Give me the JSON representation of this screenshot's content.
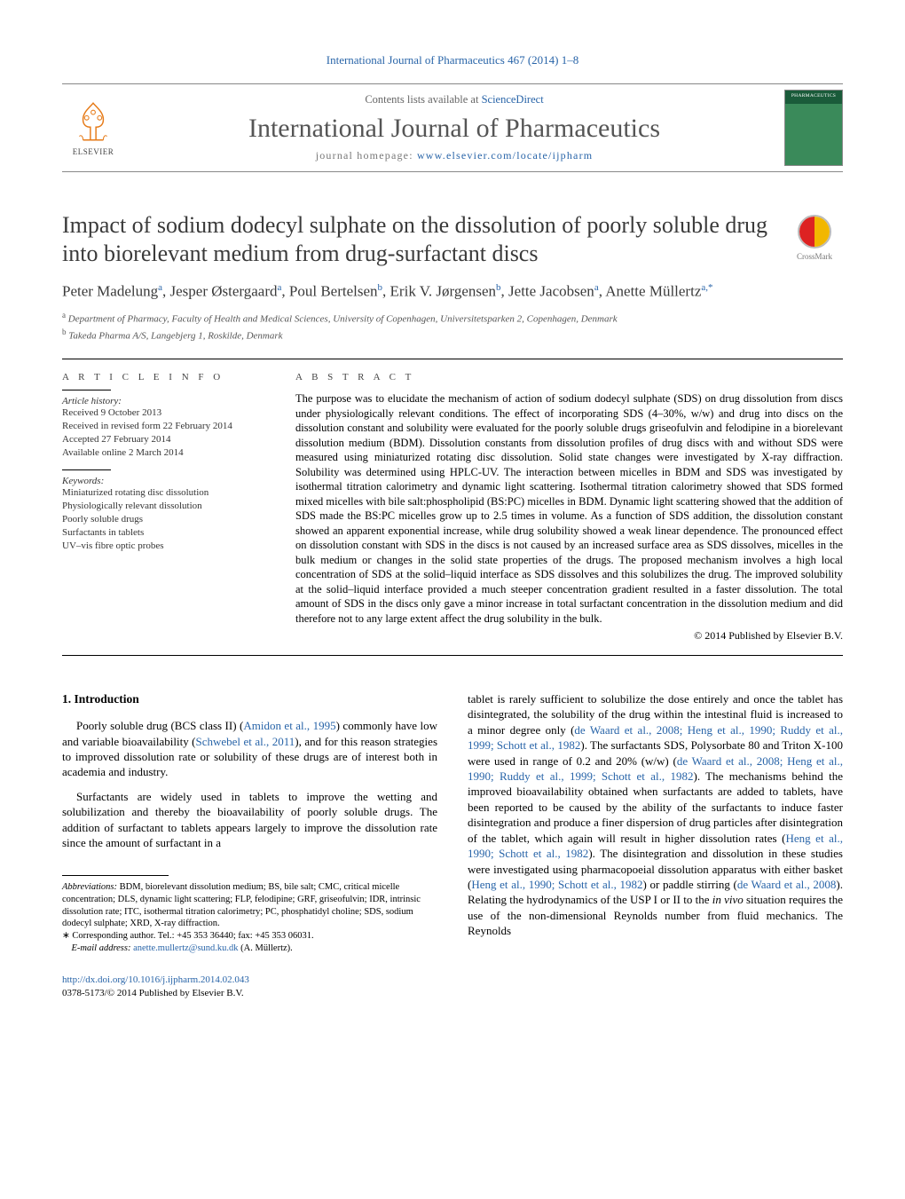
{
  "top_citation": "International Journal of Pharmaceutics 467 (2014) 1–8",
  "header": {
    "contents_prefix": "Contents lists available at ",
    "contents_link": "ScienceDirect",
    "journal_title": "International Journal of Pharmaceutics",
    "homepage_prefix": "journal homepage: ",
    "homepage_url": "www.elsevier.com/locate/ijpharm",
    "publisher_logo_text": "ELSEVIER",
    "cover_label_line1": "PHARMACEUTICS"
  },
  "article": {
    "title": "Impact of sodium dodecyl sulphate on the dissolution of poorly soluble drug into biorelevant medium from drug-surfactant discs",
    "crossmark_label": "CrossMark",
    "authors_html": "Peter Madelung<sup>a</sup>, Jesper Østergaard<sup>a</sup>, Poul Bertelsen<sup>b</sup>, Erik V. Jørgensen<sup>b</sup>, Jette Jacobsen<sup>a</sup>, Anette Müllertz<sup>a,</sup><sup class='sup-star'>*</sup>",
    "affiliations": [
      {
        "marker": "a",
        "text": "Department of Pharmacy, Faculty of Health and Medical Sciences, University of Copenhagen, Universitetsparken 2, Copenhagen, Denmark"
      },
      {
        "marker": "b",
        "text": "Takeda Pharma A/S, Langebjerg 1, Roskilde, Denmark"
      }
    ]
  },
  "article_info": {
    "heading": "a r t i c l e   i n f o",
    "history_label": "Article history:",
    "history": [
      "Received 9 October 2013",
      "Received in revised form 22 February 2014",
      "Accepted 27 February 2014",
      "Available online 2 March 2014"
    ],
    "keywords_label": "Keywords:",
    "keywords": [
      "Miniaturized rotating disc dissolution",
      "Physiologically relevant dissolution",
      "Poorly soluble drugs",
      "Surfactants in tablets",
      "UV–vis fibre optic probes"
    ]
  },
  "abstract": {
    "heading": "a b s t r a c t",
    "text": "The purpose was to elucidate the mechanism of action of sodium dodecyl sulphate (SDS) on drug dissolution from discs under physiologically relevant conditions. The effect of incorporating SDS (4–30%, w/w) and drug into discs on the dissolution constant and solubility were evaluated for the poorly soluble drugs griseofulvin and felodipine in a biorelevant dissolution medium (BDM). Dissolution constants from dissolution profiles of drug discs with and without SDS were measured using miniaturized rotating disc dissolution. Solid state changes were investigated by X-ray diffraction. Solubility was determined using HPLC-UV. The interaction between micelles in BDM and SDS was investigated by isothermal titration calorimetry and dynamic light scattering. Isothermal titration calorimetry showed that SDS formed mixed micelles with bile salt:phospholipid (BS:PC) micelles in BDM. Dynamic light scattering showed that the addition of SDS made the BS:PC micelles grow up to 2.5 times in volume. As a function of SDS addition, the dissolution constant showed an apparent exponential increase, while drug solubility showed a weak linear dependence. The pronounced effect on dissolution constant with SDS in the discs is not caused by an increased surface area as SDS dissolves, micelles in the bulk medium or changes in the solid state properties of the drugs. The proposed mechanism involves a high local concentration of SDS at the solid–liquid interface as SDS dissolves and this solubilizes the drug. The improved solubility at the solid–liquid interface provided a much steeper concentration gradient resulted in a faster dissolution. The total amount of SDS in the discs only gave a minor increase in total surfactant concentration in the dissolution medium and did therefore not to any large extent affect the drug solubility in the bulk.",
    "copyright": "© 2014 Published by Elsevier B.V."
  },
  "body": {
    "section_heading": "1.  Introduction",
    "left_paragraphs": [
      "Poorly soluble drug (BCS class II) (<span class='ref'>Amidon et al., 1995</span>) commonly have low and variable bioavailability (<span class='ref'>Schwebel et al., 2011</span>), and for this reason strategies to improved dissolution rate or solubility of these drugs are of interest both in academia and industry.",
      "Surfactants are widely used in tablets to improve the wetting and solubilization and thereby the bioavailability of poorly soluble drugs. The addition of surfactant to tablets appears largely to improve the dissolution rate since the amount of surfactant in a"
    ],
    "right_paragraph": "tablet is rarely sufficient to solubilize the dose entirely and once the tablet has disintegrated, the solubility of the drug within the intestinal fluid is increased to a minor degree only (<span class='ref'>de Waard et al., 2008; Heng et al., 1990; Ruddy et al., 1999; Schott et al., 1982</span>). The surfactants SDS, Polysorbate 80 and Triton X-100 were used in range of 0.2 and 20% (w/w) (<span class='ref'>de Waard et al., 2008; Heng et al., 1990; Ruddy et al., 1999; Schott et al., 1982</span>). The mechanisms behind the improved bioavailability obtained when surfactants are added to tablets, have been reported to be caused by the ability of the surfactants to induce faster disintegration and produce a finer dispersion of drug particles after disintegration of the tablet, which again will result in higher dissolution rates (<span class='ref'>Heng et al., 1990; Schott et al., 1982</span>). The disintegration and dissolution in these studies were investigated using pharmacopoeial dissolution apparatus with either basket (<span class='ref'>Heng et al., 1990; Schott et al., 1982</span>) or paddle stirring (<span class='ref'>de Waard et al., 2008</span>). Relating the hydrodynamics of the USP I or II to the <span class='ital'>in vivo</span> situation requires the use of the non-dimensional Reynolds number from fluid mechanics. The Reynolds"
  },
  "footnotes": {
    "abbrev_label": "Abbreviations:",
    "abbrev_text": " BDM, biorelevant dissolution medium; BS, bile salt; CMC, critical micelle concentration; DLS, dynamic light scattering; FLP, felodipine; GRF, griseofulvin; IDR, intrinsic dissolution rate; ITC, isothermal titration calorimetry; PC, phosphatidyl choline; SDS, sodium dodecyl sulphate; XRD, X-ray diffraction.",
    "corr_label": "∗ Corresponding author. Tel.: +45 353 36440; fax: +45 353 06031.",
    "email_label": "E-mail address:",
    "email": "anette.mullertz@sund.ku.dk",
    "email_suffix": " (A. Müllertz)."
  },
  "doi": {
    "url": "http://dx.doi.org/10.1016/j.ijpharm.2014.02.043",
    "issn_line": "0378-5173/© 2014 Published by Elsevier B.V."
  },
  "colors": {
    "link": "#2864a8",
    "text": "#000000",
    "muted": "#666666"
  }
}
